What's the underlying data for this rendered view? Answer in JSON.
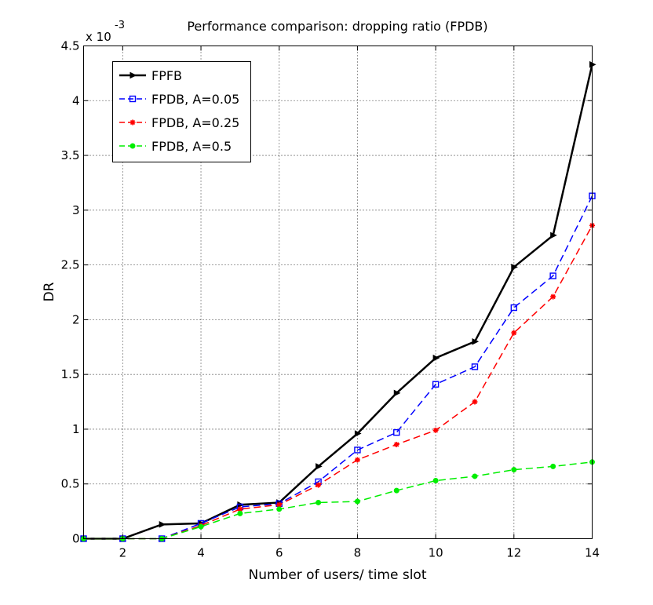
{
  "chart_data": {
    "type": "line",
    "title": "Performance comparison: dropping ratio (FPDB)",
    "xlabel": "Number of users/ time slot",
    "ylabel": "DR",
    "y_scale_base": "x 10",
    "y_scale_exponent": "-3",
    "xlim": [
      1,
      14
    ],
    "ylim": [
      0,
      4.5
    ],
    "grid": true,
    "legend_position": "top-left",
    "x_ticks": [
      2,
      4,
      6,
      8,
      10,
      12,
      14
    ],
    "y_ticks": [
      0,
      0.5,
      1,
      1.5,
      2,
      2.5,
      3,
      3.5,
      4,
      4.5
    ],
    "x_tick_labels": [
      "2",
      "4",
      "6",
      "8",
      "10",
      "12",
      "14"
    ],
    "y_tick_labels": [
      "0",
      "0.5",
      "1",
      "1.5",
      "2",
      "2.5",
      "3",
      "3.5",
      "4",
      "4.5"
    ],
    "x": [
      1,
      2,
      3,
      4,
      5,
      6,
      7,
      8,
      9,
      10,
      11,
      12,
      13,
      14
    ],
    "series": [
      {
        "name": "FPFB",
        "color": "#000000",
        "dash": "solid",
        "marker": "triangle-right",
        "values": [
          0,
          0,
          0.13,
          0.14,
          0.31,
          0.33,
          0.66,
          0.96,
          1.33,
          1.65,
          1.8,
          2.48,
          2.77,
          4.33
        ]
      },
      {
        "name": "FPDB, A=0.05",
        "color": "#0000ff",
        "dash": "dashed",
        "marker": "square",
        "values": [
          0,
          0,
          0,
          0.14,
          0.29,
          0.32,
          0.52,
          0.81,
          0.97,
          1.41,
          1.57,
          2.11,
          2.4,
          3.13
        ]
      },
      {
        "name": "FPDB, A=0.25",
        "color": "#ff0000",
        "dash": "dashed",
        "marker": "star",
        "values": [
          0,
          0,
          0,
          0.12,
          0.27,
          0.31,
          0.49,
          0.72,
          0.86,
          0.99,
          1.25,
          1.88,
          2.21,
          2.86
        ]
      },
      {
        "name": "FPDB, A=0.5",
        "color": "#00ee00",
        "dash": "dashed",
        "marker": "circle",
        "values": [
          0,
          0,
          0,
          0.11,
          0.23,
          0.27,
          0.33,
          0.34,
          0.44,
          0.53,
          0.57,
          0.63,
          0.66,
          0.7
        ]
      }
    ]
  }
}
